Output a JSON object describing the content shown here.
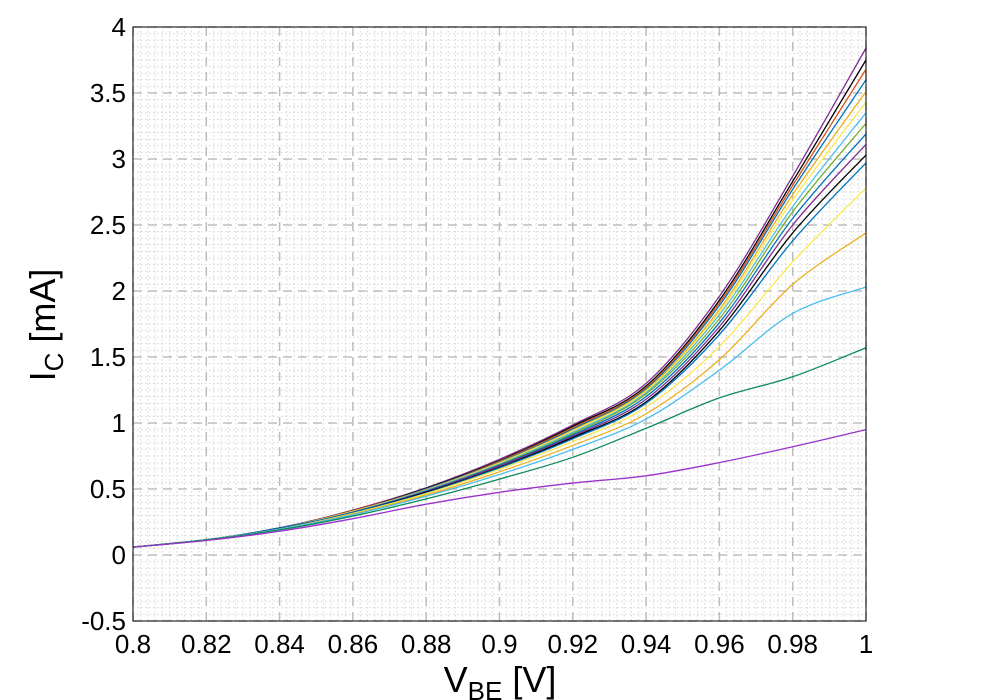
{
  "chart_data": {
    "type": "line",
    "title": "",
    "xlabel": {
      "main": "V",
      "sub": "BE",
      "unit": " [V]"
    },
    "ylabel": {
      "main": "I",
      "sub": "C",
      "unit": " [mA]"
    },
    "xlim": [
      0.8,
      1.0
    ],
    "ylim": [
      -0.5,
      4.0
    ],
    "xticks": [
      0.8,
      0.82,
      0.84,
      0.86,
      0.88,
      0.9,
      0.92,
      0.94,
      0.96,
      0.98,
      1.0
    ],
    "xtick_labels": [
      "0.8",
      "0.82",
      "0.84",
      "0.86",
      "0.88",
      "0.9",
      "0.92",
      "0.94",
      "0.96",
      "0.98",
      "1"
    ],
    "yticks": [
      -0.5,
      0,
      0.5,
      1,
      1.5,
      2,
      2.5,
      3,
      3.5,
      4
    ],
    "ytick_labels": [
      "-0.5",
      "0",
      "0.5",
      "1",
      "1.5",
      "2",
      "2.5",
      "3",
      "3.5",
      "4"
    ],
    "grid": true,
    "minor_grid": true,
    "x": [
      0.8,
      0.82,
      0.84,
      0.86,
      0.88,
      0.9,
      0.92,
      0.94,
      0.96,
      0.98,
      1.0
    ],
    "series": [
      {
        "color": "#7e2f8e",
        "values": [
          0.06,
          0.115,
          0.205,
          0.34,
          0.51,
          0.725,
          0.985,
          1.3,
          1.96,
          2.87,
          3.84
        ]
      },
      {
        "color": "#000000",
        "values": [
          0.06,
          0.115,
          0.205,
          0.335,
          0.505,
          0.715,
          0.975,
          1.28,
          1.93,
          2.83,
          3.75
        ]
      },
      {
        "color": "#d95319",
        "values": [
          0.06,
          0.115,
          0.205,
          0.335,
          0.5,
          0.71,
          0.965,
          1.27,
          1.91,
          2.8,
          3.68
        ]
      },
      {
        "color": "#0072bd",
        "values": [
          0.06,
          0.115,
          0.205,
          0.33,
          0.5,
          0.705,
          0.955,
          1.26,
          1.89,
          2.77,
          3.6
        ]
      },
      {
        "color": "#edb120",
        "values": [
          0.06,
          0.115,
          0.2,
          0.33,
          0.495,
          0.7,
          0.945,
          1.25,
          1.86,
          2.73,
          3.51
        ]
      },
      {
        "color": "#ffe84d",
        "values": [
          0.06,
          0.115,
          0.2,
          0.33,
          0.49,
          0.695,
          0.94,
          1.24,
          1.84,
          2.69,
          3.43
        ]
      },
      {
        "color": "#4dbeee",
        "values": [
          0.06,
          0.115,
          0.2,
          0.325,
          0.49,
          0.69,
          0.93,
          1.23,
          1.82,
          2.64,
          3.35
        ]
      },
      {
        "color": "#77ac30",
        "values": [
          0.06,
          0.115,
          0.2,
          0.325,
          0.485,
          0.685,
          0.92,
          1.22,
          1.79,
          2.6,
          3.27
        ]
      },
      {
        "color": "#0072bd",
        "values": [
          0.06,
          0.115,
          0.2,
          0.325,
          0.485,
          0.68,
          0.91,
          1.2,
          1.76,
          2.55,
          3.19
        ]
      },
      {
        "color": "#7e2f8e",
        "values": [
          0.06,
          0.115,
          0.2,
          0.32,
          0.48,
          0.675,
          0.9,
          1.18,
          1.73,
          2.5,
          3.11
        ]
      },
      {
        "color": "#000000",
        "values": [
          0.06,
          0.115,
          0.2,
          0.32,
          0.475,
          0.665,
          0.89,
          1.16,
          1.7,
          2.44,
          3.03
        ]
      },
      {
        "color": "#0072bd",
        "values": [
          0.06,
          0.115,
          0.2,
          0.32,
          0.47,
          0.66,
          0.88,
          1.15,
          1.67,
          2.38,
          2.97
        ]
      },
      {
        "color": "#ffe84d",
        "values": [
          0.06,
          0.115,
          0.195,
          0.315,
          0.465,
          0.65,
          0.86,
          1.12,
          1.58,
          2.22,
          2.78
        ]
      },
      {
        "color": "#edb120",
        "values": [
          0.06,
          0.115,
          0.195,
          0.31,
          0.455,
          0.63,
          0.83,
          1.07,
          1.48,
          2.05,
          2.44
        ]
      },
      {
        "color": "#4dbeee",
        "values": [
          0.06,
          0.115,
          0.195,
          0.305,
          0.445,
          0.61,
          0.8,
          1.03,
          1.4,
          1.83,
          2.03
        ]
      },
      {
        "color": "#0d8a5a",
        "values": [
          0.06,
          0.115,
          0.19,
          0.295,
          0.425,
          0.575,
          0.74,
          0.96,
          1.19,
          1.35,
          1.57
        ]
      },
      {
        "color": "#9933cc",
        "values": [
          0.06,
          0.11,
          0.18,
          0.275,
          0.385,
          0.475,
          0.545,
          0.6,
          0.7,
          0.82,
          0.95
        ]
      }
    ]
  }
}
